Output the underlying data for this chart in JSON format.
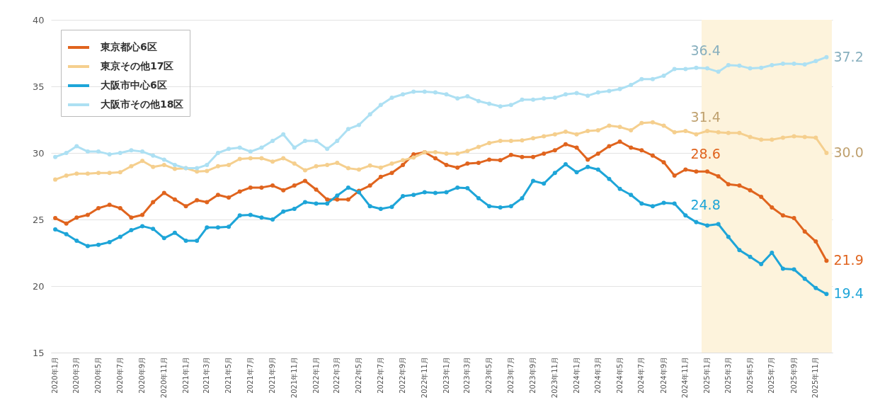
{
  "chart_data": {
    "type": "line",
    "x": [
      "2020-01",
      "2020-02",
      "2020-03",
      "2020-04",
      "2020-05",
      "2020-06",
      "2020-07",
      "2020-08",
      "2020-09",
      "2020-10",
      "2020-11",
      "2020-12",
      "2021-01",
      "2021-02",
      "2021-03",
      "2021-04",
      "2021-05",
      "2021-06",
      "2021-07",
      "2021-08",
      "2021-09",
      "2021-10",
      "2021-11",
      "2021-12",
      "2022-01",
      "2022-02",
      "2022-03",
      "2022-04",
      "2022-05",
      "2022-06",
      "2022-07",
      "2022-08",
      "2022-09",
      "2022-10",
      "2022-11",
      "2022-12",
      "2023-01",
      "2023-02",
      "2023-03",
      "2023-04",
      "2023-05",
      "2023-06",
      "2023-07",
      "2023-08",
      "2023-09",
      "2023-10",
      "2023-11",
      "2023-12",
      "2024-01",
      "2024-02",
      "2024-03",
      "2024-04",
      "2024-05",
      "2024-06",
      "2024-07",
      "2024-08",
      "2024-09",
      "2024-10",
      "2024-11",
      "2024-12",
      "2025-01",
      "2025-02",
      "2025-03",
      "2025-04",
      "2025-05",
      "2025-06",
      "2025-07",
      "2025-08",
      "2025-09",
      "2025-10",
      "2025-11",
      "2025-12"
    ],
    "series": [
      {
        "name": "東京都心6区",
        "color": "#e0641e",
        "values": [
          25.1,
          24.7,
          25.15,
          25.35,
          25.85,
          26.1,
          25.85,
          25.15,
          25.35,
          26.3,
          27.0,
          26.5,
          26.0,
          26.45,
          26.3,
          26.85,
          26.65,
          27.1,
          27.4,
          27.4,
          27.55,
          27.2,
          27.55,
          27.9,
          27.25,
          26.5,
          26.5,
          26.5,
          27.15,
          27.55,
          28.2,
          28.5,
          29.1,
          29.9,
          30.05,
          29.6,
          29.1,
          28.9,
          29.2,
          29.25,
          29.5,
          29.45,
          29.85,
          29.7,
          29.7,
          29.95,
          30.2,
          30.65,
          30.4,
          29.5,
          29.95,
          30.5,
          30.85,
          30.4,
          30.2,
          29.8,
          29.3,
          28.3,
          28.75,
          28.6,
          28.6,
          28.25,
          27.65,
          27.55,
          27.2,
          26.7,
          25.9,
          25.3,
          25.1,
          24.1,
          23.35,
          21.9
        ]
      },
      {
        "name": "東京その他17区",
        "color": "#f5cf8e",
        "values": [
          28.0,
          28.3,
          28.45,
          28.45,
          28.5,
          28.5,
          28.55,
          29.0,
          29.4,
          28.95,
          29.1,
          28.8,
          28.85,
          28.6,
          28.65,
          29.0,
          29.1,
          29.55,
          29.6,
          29.6,
          29.35,
          29.6,
          29.2,
          28.7,
          29.0,
          29.1,
          29.25,
          28.85,
          28.75,
          29.05,
          28.9,
          29.2,
          29.45,
          29.65,
          30.05,
          30.05,
          29.95,
          29.95,
          30.15,
          30.45,
          30.75,
          30.9,
          30.9,
          30.95,
          31.1,
          31.25,
          31.4,
          31.6,
          31.4,
          31.65,
          31.7,
          32.05,
          31.95,
          31.7,
          32.25,
          32.3,
          32.05,
          31.55,
          31.65,
          31.4,
          31.65,
          31.55,
          31.5,
          31.5,
          31.2,
          31.0,
          31.0,
          31.15,
          31.25,
          31.2,
          31.15,
          30.0
        ]
      },
      {
        "name": "大阪市中心6区",
        "color": "#1ea5d8",
        "values": [
          24.25,
          23.9,
          23.4,
          23.0,
          23.1,
          23.3,
          23.7,
          24.2,
          24.5,
          24.3,
          23.6,
          24.0,
          23.4,
          23.4,
          24.4,
          24.4,
          24.45,
          25.3,
          25.35,
          25.15,
          25.0,
          25.6,
          25.8,
          26.3,
          26.2,
          26.2,
          26.8,
          27.4,
          27.05,
          26.0,
          25.8,
          25.95,
          26.75,
          26.85,
          27.05,
          27.0,
          27.05,
          27.4,
          27.35,
          26.6,
          26.0,
          25.9,
          26.0,
          26.6,
          27.9,
          27.7,
          28.5,
          29.15,
          28.55,
          28.95,
          28.75,
          28.05,
          27.3,
          26.85,
          26.2,
          26.0,
          26.25,
          26.2,
          25.3,
          24.8,
          24.55,
          24.65,
          23.7,
          22.7,
          22.2,
          21.65,
          22.5,
          21.3,
          21.25,
          20.55,
          19.85,
          19.4
        ]
      },
      {
        "name": "大阪市その他18区",
        "color": "#ade0f3",
        "values": [
          29.7,
          30.0,
          30.5,
          30.1,
          30.1,
          29.9,
          30.0,
          30.2,
          30.1,
          29.8,
          29.5,
          29.1,
          28.85,
          28.85,
          29.1,
          30.0,
          30.3,
          30.4,
          30.1,
          30.4,
          30.9,
          31.4,
          30.4,
          30.9,
          30.9,
          30.3,
          30.9,
          31.8,
          32.1,
          32.9,
          33.6,
          34.15,
          34.4,
          34.6,
          34.6,
          34.55,
          34.4,
          34.1,
          34.25,
          33.9,
          33.7,
          33.5,
          33.6,
          34.0,
          34.0,
          34.1,
          34.15,
          34.4,
          34.5,
          34.3,
          34.55,
          34.65,
          34.8,
          35.1,
          35.55,
          35.55,
          35.8,
          36.3,
          36.3,
          36.4,
          36.35,
          36.1,
          36.6,
          36.55,
          36.35,
          36.4,
          36.6,
          36.7,
          36.7,
          36.65,
          36.9,
          37.2
        ]
      }
    ],
    "xlim": [
      "2019-12-20",
      "2025-12-18"
    ],
    "xticks": [
      {
        "value": "2020-01",
        "label": "2020年1月"
      },
      {
        "value": "2020-03",
        "label": "2020年3月"
      },
      {
        "value": "2020-05",
        "label": "2020年5月"
      },
      {
        "value": "2020-07",
        "label": "2020年7月"
      },
      {
        "value": "2020-09",
        "label": "2020年9月"
      },
      {
        "value": "2020-11",
        "label": "2020年11月"
      },
      {
        "value": "2021-01",
        "label": "2021年1月"
      },
      {
        "value": "2021-03",
        "label": "2021年3月"
      },
      {
        "value": "2021-05",
        "label": "2021年5月"
      },
      {
        "value": "2021-07",
        "label": "2021年7月"
      },
      {
        "value": "2021-09",
        "label": "2021年9月"
      },
      {
        "value": "2021-11",
        "label": "2021年11月"
      },
      {
        "value": "2022-01",
        "label": "2022年1月"
      },
      {
        "value": "2022-03",
        "label": "2022年3月"
      },
      {
        "value": "2022-05",
        "label": "2022年5月"
      },
      {
        "value": "2022-07",
        "label": "2022年7月"
      },
      {
        "value": "2022-09",
        "label": "2022年9月"
      },
      {
        "value": "2022-11",
        "label": "2022年11月"
      },
      {
        "value": "2023-01",
        "label": "2023年1月"
      },
      {
        "value": "2023-03",
        "label": "2023年3月"
      },
      {
        "value": "2023-05",
        "label": "2023年5月"
      },
      {
        "value": "2023-07",
        "label": "2023年7月"
      },
      {
        "value": "2023-09",
        "label": "2023年9月"
      },
      {
        "value": "2023-11",
        "label": "2023年11月"
      },
      {
        "value": "2024-01",
        "label": "2024年1月"
      },
      {
        "value": "2024-03",
        "label": "2024年3月"
      },
      {
        "value": "2024-05",
        "label": "2024年5月"
      },
      {
        "value": "2024-07",
        "label": "2024年7月"
      },
      {
        "value": "2024-09",
        "label": "2024年9月"
      },
      {
        "value": "2024-11",
        "label": "2024年11月"
      },
      {
        "value": "2025-01",
        "label": "2025年1月"
      },
      {
        "value": "2025-03",
        "label": "2025年3月"
      },
      {
        "value": "2025-05",
        "label": "2025年5月"
      },
      {
        "value": "2025-07",
        "label": "2025年7月"
      },
      {
        "value": "2025-09",
        "label": "2025年9月"
      },
      {
        "value": "2025-11",
        "label": "2025年11月"
      }
    ],
    "ylim": [
      15,
      40
    ],
    "yticks": [
      15,
      20,
      25,
      30,
      35,
      40
    ],
    "grid": "y",
    "legend": "top left",
    "marker": "circle",
    "line_style": "solid",
    "bands": [
      {
        "axis": "x",
        "from": "2024-12-16",
        "to": "2025-12-16",
        "color": "#fdf3dc"
      }
    ],
    "annotations": [
      {
        "text": "36.4",
        "x": "2024-12",
        "y": 36.4
      },
      {
        "text": "31.4",
        "x": "2024-12",
        "y": 31.4
      },
      {
        "text": "28.6",
        "x": "2024-12",
        "y": 28.6
      },
      {
        "text": "24.8",
        "x": "2024-12",
        "y": 24.8
      },
      {
        "text": "37.2",
        "x": "2025-12",
        "y": 37.2
      },
      {
        "text": "30.0",
        "x": "2025-12",
        "y": 30.0
      },
      {
        "text": "21.9",
        "x": "2025-12",
        "y": 21.9
      },
      {
        "text": "19.4",
        "x": "2025-12",
        "y": 19.4
      }
    ]
  }
}
